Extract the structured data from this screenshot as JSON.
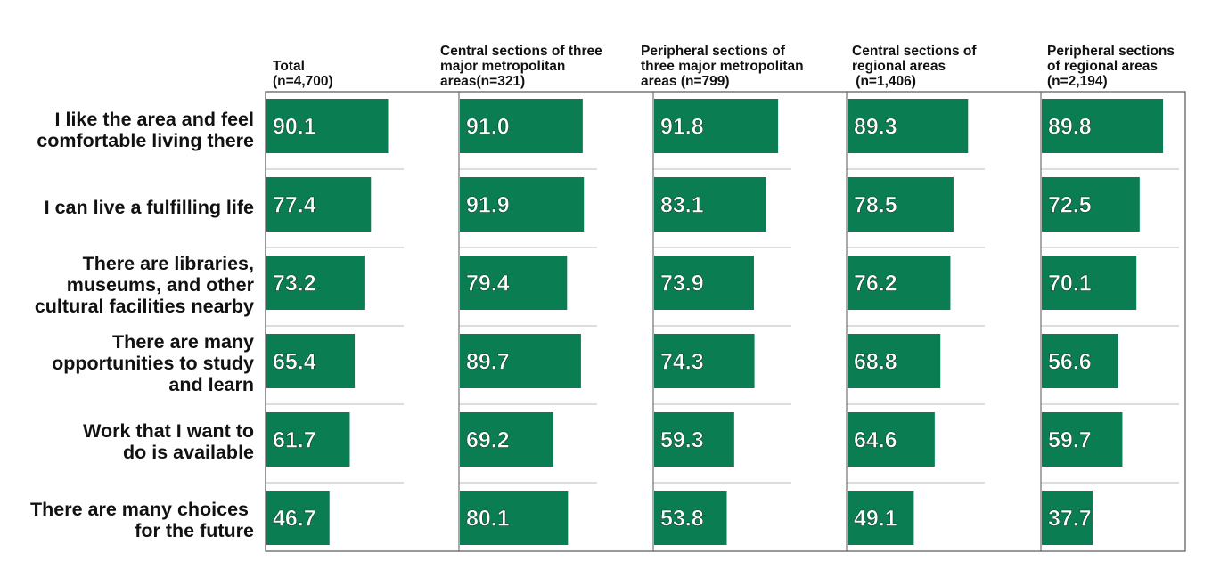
{
  "chart_data": {
    "type": "bar",
    "orientation": "horizontal",
    "layout": "small-multiples",
    "categories": [
      "I like the area and feel\ncomfortable living there",
      "I can live a fulfilling life",
      "There are libraries,\nmuseums, and other\ncultural facilities nearby",
      "There are many\nopportunities to study\nand learn",
      "Work that I want to\ndo is available",
      "There are many choices \nfor the future"
    ],
    "series": [
      {
        "name": "Total\n(n=4,700)",
        "values": [
          90.1,
          77.4,
          73.2,
          65.4,
          61.7,
          46.7
        ]
      },
      {
        "name": "Central sections of three\nmajor metropolitan\nareas(n=321)",
        "values": [
          91.0,
          91.9,
          79.4,
          89.7,
          69.2,
          80.1
        ]
      },
      {
        "name": "Peripheral sections of\nthree major metropolitan\nareas (n=799)",
        "values": [
          91.8,
          83.1,
          73.9,
          74.3,
          59.3,
          53.8
        ]
      },
      {
        "name": "Central sections of\nregional areas\n (n=1,406)",
        "values": [
          89.3,
          78.5,
          76.2,
          68.8,
          64.6,
          49.1
        ]
      },
      {
        "name": "Peripheral sections\nof regional areas\n(n=2,194)",
        "values": [
          89.8,
          72.5,
          70.1,
          56.6,
          59.7,
          37.7
        ]
      }
    ],
    "value_labels": [
      [
        "90.1",
        "77.4",
        "73.2",
        "65.4",
        "61.7",
        "46.7"
      ],
      [
        "91.0",
        "91.9",
        "79.4",
        "89.7",
        "69.2",
        "80.1"
      ],
      [
        "91.8",
        "83.1",
        "73.9",
        "74.3",
        "59.3",
        "53.8"
      ],
      [
        "89.3",
        "78.5",
        "76.2",
        "68.8",
        "64.6",
        "49.1"
      ],
      [
        "89.8",
        "72.5",
        "70.1",
        "56.6",
        "59.7",
        "37.7"
      ]
    ],
    "xlim": [
      0,
      100
    ],
    "grid": false,
    "colors": {
      "bar": "#0a7d52",
      "bar_text": "#ffffff",
      "frame": "#555555",
      "separator": "#bbbbbb"
    }
  }
}
